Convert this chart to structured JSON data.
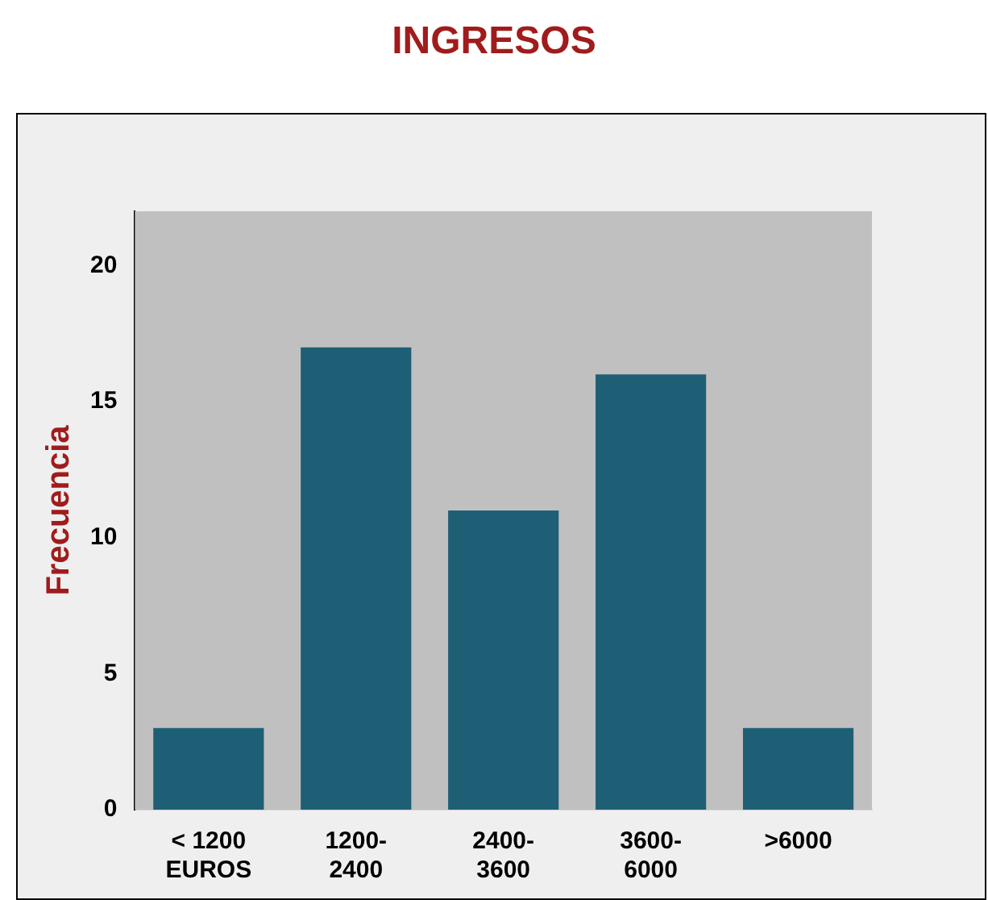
{
  "chart_data": {
    "type": "bar",
    "title": "INGRESOS",
    "ylabel": "Frecuencia",
    "categories": [
      "< 1200 EUROS",
      "1200-2400",
      "2400-3600",
      "3600-6000",
      ">6000"
    ],
    "values": [
      3,
      17,
      11,
      16,
      3
    ],
    "color": "#1f5f75",
    "ylim": [
      0,
      22
    ],
    "yticks": [
      0,
      5,
      10,
      15,
      20
    ],
    "grid": false,
    "legend": false
  }
}
